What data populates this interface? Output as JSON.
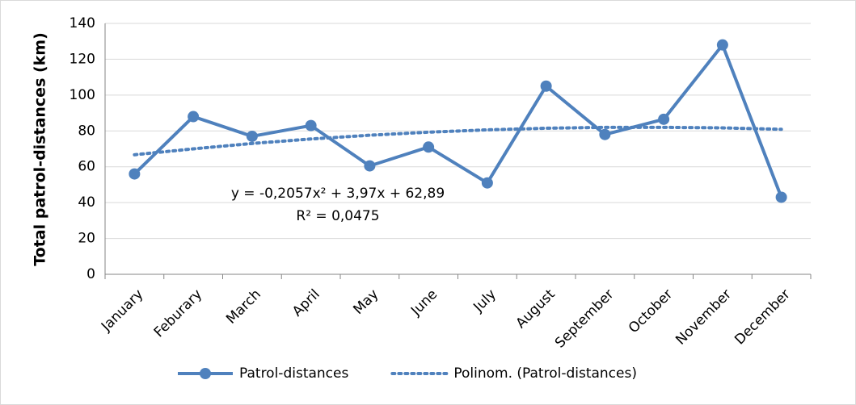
{
  "chart_data": {
    "type": "line",
    "y_label": "Total patrol-distances (km)",
    "categories": [
      "January",
      "Feburary",
      "March",
      "April",
      "May",
      "June",
      "July",
      "August",
      "September",
      "October",
      "November",
      "December"
    ],
    "series": [
      {
        "name": "Patrol-distances",
        "color": "#4f81bd",
        "style": "solid",
        "values": [
          56,
          88,
          77,
          83,
          60.5,
          71,
          51,
          105,
          78,
          86.5,
          128,
          43
        ]
      },
      {
        "name": "Polinom. (Patrol-distances)",
        "color": "#4f81bd",
        "style": "dotted",
        "values": [
          66.7,
          70.0,
          73.0,
          75.5,
          77.6,
          79.3,
          80.6,
          81.5,
          82.0,
          82.0,
          81.7,
          80.9
        ]
      }
    ],
    "annotations": [
      "y = -0,2057x² + 3,97x + 62,89",
      "R² = 0,0475"
    ],
    "ylim": [
      0,
      140
    ],
    "yticks": [
      0,
      20,
      40,
      60,
      80,
      100,
      120,
      140
    ],
    "grid": true,
    "legend": "bottom"
  }
}
